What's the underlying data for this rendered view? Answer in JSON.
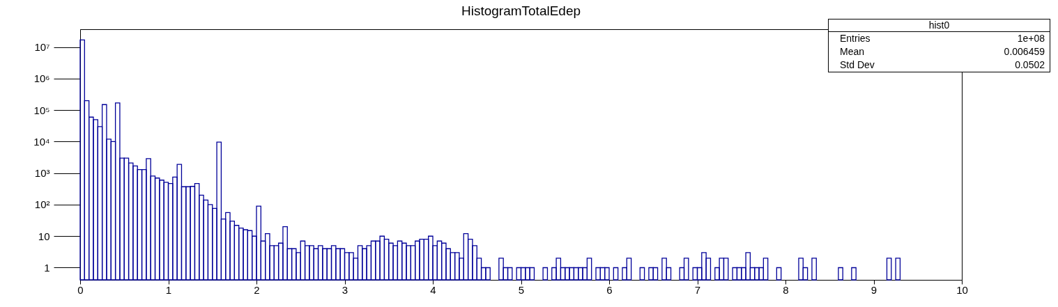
{
  "chart_data": {
    "type": "histogram",
    "title": "HistogramTotalEdep",
    "bins": [
      0,
      0.05,
      0.1,
      0.15,
      0.2,
      0.25,
      0.3,
      0.35,
      0.4,
      0.45,
      0.5,
      0.55,
      0.6,
      0.65,
      0.7,
      0.75,
      0.8,
      0.85,
      0.9,
      0.95,
      1,
      1.05,
      1.1,
      1.15,
      1.2,
      1.25,
      1.3,
      1.35,
      1.4,
      1.45,
      1.5,
      1.55,
      1.6,
      1.65,
      1.7,
      1.75,
      1.8,
      1.85,
      1.9,
      1.95,
      2,
      2.05,
      2.1,
      2.15,
      2.2,
      2.25,
      2.3,
      2.35,
      2.4,
      2.45,
      2.5,
      2.55,
      2.6,
      2.65,
      2.7,
      2.75,
      2.8,
      2.85,
      2.9,
      2.95,
      3,
      3.05,
      3.1,
      3.15,
      3.2,
      3.25,
      3.3,
      3.35,
      3.4,
      3.45,
      3.5,
      3.55,
      3.6,
      3.65,
      3.7,
      3.75,
      3.8,
      3.85,
      3.9,
      3.95,
      4,
      4.05,
      4.1,
      4.15,
      4.2,
      4.25,
      4.3,
      4.35,
      4.4,
      4.45,
      4.5,
      4.55,
      4.6,
      4.65,
      4.7,
      4.75,
      4.8,
      4.85,
      4.9,
      4.95,
      5,
      5.05,
      5.1,
      5.15,
      5.2,
      5.25,
      5.3,
      5.35,
      5.4,
      5.45,
      5.5,
      5.55,
      5.6,
      5.65,
      5.7,
      5.75,
      5.8,
      5.85,
      5.9,
      5.95,
      6,
      6.05,
      6.1,
      6.15,
      6.2,
      6.25,
      6.3,
      6.35,
      6.4,
      6.45,
      6.5,
      6.55,
      6.6,
      6.65,
      6.7,
      6.75,
      6.8,
      6.85,
      6.9,
      6.95,
      7,
      7.05,
      7.1,
      7.15,
      7.2,
      7.25,
      7.3,
      7.35,
      7.4,
      7.45,
      7.5,
      7.55,
      7.6,
      7.65,
      7.7,
      7.75,
      7.8,
      7.85,
      7.9,
      7.95,
      8,
      8.05,
      8.1,
      8.15,
      8.2,
      8.25,
      8.3,
      8.35,
      8.4,
      8.45,
      8.5,
      8.55,
      8.6,
      8.65,
      8.7,
      8.75,
      8.8,
      8.85,
      8.9,
      8.95,
      9,
      9.05,
      9.1,
      9.15,
      9.2,
      9.25,
      9.3,
      9.35,
      9.4,
      9.45,
      9.5,
      9.55,
      9.6,
      9.65,
      9.7,
      9.75,
      9.8,
      9.85,
      9.9,
      9.95,
      10
    ],
    "values": [
      17000000,
      200000,
      60000,
      50000,
      30000,
      150000,
      12000,
      10000,
      170000,
      3000,
      3000,
      2100,
      1700,
      1300,
      1300,
      2900,
      810,
      700,
      600,
      510,
      470,
      750,
      1900,
      370,
      370,
      380,
      470,
      200,
      140,
      100,
      76,
      9700,
      35,
      56,
      30,
      22,
      18,
      16,
      15,
      10,
      90,
      7,
      12,
      5,
      5,
      6,
      20,
      4,
      4,
      3,
      7,
      5,
      5,
      4,
      5,
      4,
      4,
      5,
      4,
      4,
      3,
      3,
      2,
      5,
      4,
      5,
      7,
      7,
      10,
      8,
      6,
      5,
      7,
      6,
      5,
      5,
      7,
      8,
      8,
      10,
      5,
      7,
      6,
      4,
      3,
      3,
      2,
      12,
      8,
      5,
      2,
      1,
      1,
      null,
      null,
      2,
      1,
      1,
      null,
      1,
      1,
      1,
      1,
      null,
      null,
      1,
      null,
      1,
      2,
      1,
      1,
      1,
      1,
      1,
      1,
      2,
      null,
      1,
      1,
      1,
      null,
      1,
      null,
      1,
      2,
      null,
      null,
      1,
      null,
      1,
      1,
      null,
      2,
      1,
      null,
      null,
      1,
      2,
      null,
      1,
      1,
      3,
      2,
      null,
      1,
      2,
      2,
      null,
      1,
      1,
      1,
      3,
      1,
      1,
      1,
      2,
      null,
      null,
      1,
      null,
      null,
      null,
      null,
      2,
      1,
      null,
      2,
      null,
      null,
      null,
      null,
      null,
      1,
      null,
      null,
      1,
      null,
      null,
      null,
      null,
      null,
      null,
      null,
      2,
      null,
      2,
      null,
      null,
      null,
      null,
      null,
      null,
      null,
      null,
      null,
      null,
      null,
      null,
      null,
      null
    ],
    "color": "#000099",
    "log": "y",
    "xlim": [
      0,
      10
    ],
    "xticks": [
      0,
      1,
      2,
      3,
      4,
      5,
      6,
      7,
      8,
      9,
      10
    ],
    "ylim": [
      0.41,
      37000000
    ],
    "yticks": [
      1,
      10,
      {
        "value": 100,
        "label": "10²"
      },
      {
        "value": 1000,
        "label": "10³"
      },
      {
        "value": 10000,
        "label": "10⁴"
      },
      {
        "value": 100000,
        "label": "10⁵"
      },
      {
        "value": 1000000,
        "label": "10⁶"
      },
      {
        "value": 10000000,
        "label": "10⁷"
      }
    ],
    "grid": false,
    "annotations": [
      "hist0",
      "Entries",
      "1e+08",
      "Mean",
      "0.006459",
      "Std Dev",
      "0.0502"
    ]
  }
}
